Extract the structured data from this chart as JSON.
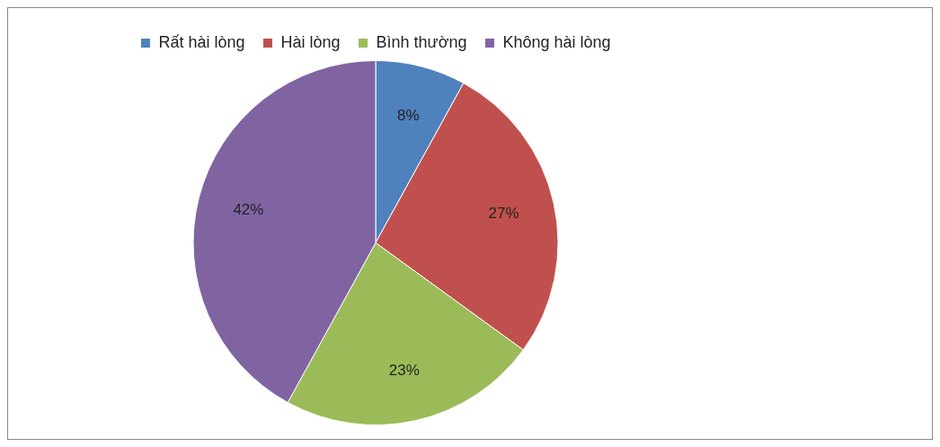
{
  "chart_data": {
    "type": "pie",
    "categories": [
      "Rất hài lòng",
      "Hài lòng",
      "Bình thường",
      "Không hài lòng"
    ],
    "values": [
      8,
      27,
      23,
      42
    ],
    "colors": [
      "#4f81bd",
      "#c0504d",
      "#9bbb59",
      "#8064a2"
    ],
    "value_labels": [
      "8%",
      "27%",
      "23%",
      "42%"
    ],
    "legend": "top"
  }
}
